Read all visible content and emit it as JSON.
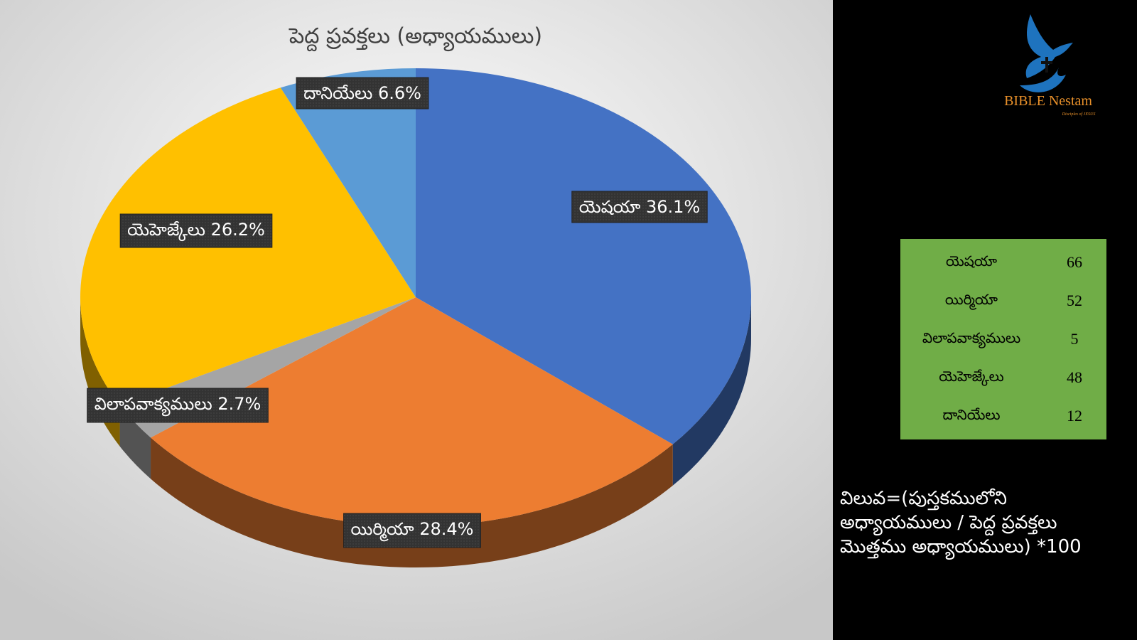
{
  "chart_data": {
    "type": "pie",
    "title": "పెద్ద ప్రవక్తలు (అధ్యాయములు)",
    "categories": [
      "యెషయా",
      "యిర్మియా",
      "విలాపవాక్యములు",
      "యెహెజ్కేలు",
      "దానియేలు"
    ],
    "values": [
      36.1,
      28.4,
      2.7,
      26.2,
      6.6
    ],
    "value_labels": [
      "36.1%",
      "28.4%",
      "2.7%",
      "26.2%",
      "6.6%"
    ],
    "colors": [
      "#4472c4",
      "#ed7d31",
      "#a5a5a5",
      "#ffc000",
      "#5b9bd5"
    ]
  },
  "table": {
    "rows": [
      [
        "యెషయా",
        66
      ],
      [
        "యిర్మియా",
        52
      ],
      [
        "విలాపవాక్యములు",
        5
      ],
      [
        "యెహెజ్కేలు",
        48
      ],
      [
        "దానియేలు",
        12
      ]
    ]
  },
  "note": "విలువ=(పుస్తకములోని అధ్యాయములు / పెద్ద ప్రవక్తలు మొత్తము అధ్యాయములు) *100",
  "logo": {
    "name": "BIBLE Nestam",
    "tagline": "Disciples of JESUS"
  }
}
